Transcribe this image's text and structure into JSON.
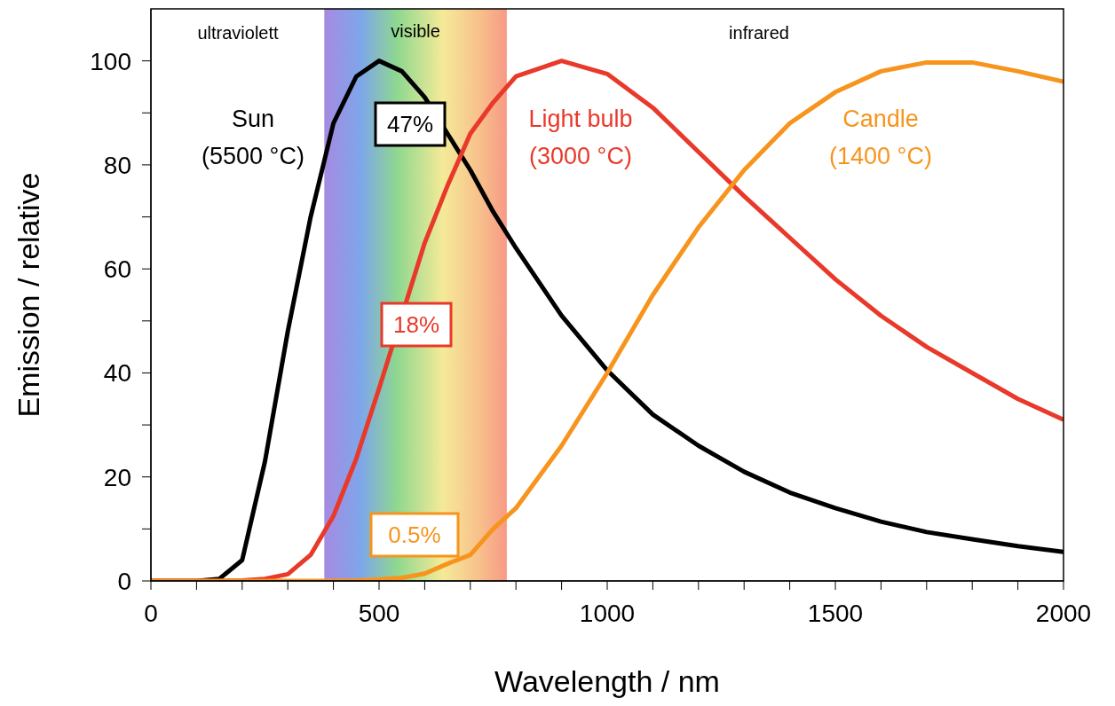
{
  "chart_data": {
    "type": "line",
    "xlabel": "Wavelength / nm",
    "ylabel": "Emission / relative",
    "x": [
      0,
      100,
      150,
      200,
      250,
      300,
      350,
      400,
      450,
      500,
      550,
      600,
      650,
      700,
      750,
      800,
      900,
      1000,
      1100,
      1200,
      1300,
      1400,
      1500,
      1600,
      1700,
      1800,
      1900,
      2000
    ],
    "series": [
      {
        "name": "Sun (5500 °C)",
        "color": "#000000",
        "values": [
          0,
          0,
          0.4,
          4,
          23,
          48,
          70,
          88,
          97,
          100,
          98,
          93,
          86,
          79,
          71,
          64,
          51,
          40.5,
          32,
          26,
          21,
          17,
          14,
          11.4,
          9.4,
          8,
          6.7,
          5.6
        ]
      },
      {
        "name": "Light bulb (3000 °C)",
        "color": "#e8392a",
        "x": [
          0,
          100,
          150,
          200,
          250,
          300,
          350,
          400,
          450,
          500,
          600,
          650,
          700,
          750,
          800,
          900,
          1000,
          1100,
          1200,
          1300,
          1400,
          1500,
          1600,
          1700,
          1800,
          1900,
          2000
        ],
        "values": [
          0,
          0,
          0,
          0.1,
          0.4,
          1.3,
          5,
          12.5,
          23.5,
          37,
          65,
          76,
          86,
          92,
          97,
          100,
          97.5,
          91,
          82.5,
          74,
          66,
          58,
          51,
          45,
          40,
          35,
          31
        ]
      },
      {
        "name": "Candle (1400 °C)",
        "color": "#f7941d",
        "values": [
          0,
          0,
          0,
          0,
          0,
          0,
          0,
          0,
          0.1,
          0.3,
          0.6,
          1.4,
          3.3,
          5,
          10,
          14,
          26,
          40,
          55,
          68,
          79,
          88,
          94,
          98,
          99.7,
          99.7,
          98,
          96
        ]
      }
    ],
    "xlim": [
      0,
      2000
    ],
    "xticks": [
      0,
      {
        "value": 100,
        "label": null
      },
      {
        "value": 200,
        "label": null
      },
      {
        "value": 300,
        "label": null
      },
      {
        "value": 400,
        "label": null
      },
      500,
      {
        "value": 600,
        "label": null
      },
      {
        "value": 700,
        "label": null
      },
      {
        "value": 800,
        "label": null
      },
      {
        "value": 900,
        "label": null
      },
      1000,
      {
        "value": 1100,
        "label": null
      },
      {
        "value": 1200,
        "label": null
      },
      {
        "value": 1300,
        "label": null
      },
      {
        "value": 1400,
        "label": null
      },
      1500,
      {
        "value": 1600,
        "label": null
      },
      {
        "value": 1700,
        "label": null
      },
      {
        "value": 1800,
        "label": null
      },
      {
        "value": 1900,
        "label": null
      },
      2000
    ],
    "ylim": [
      0,
      110
    ],
    "yticks": [
      0,
      {
        "value": 10,
        "label": null
      },
      20,
      {
        "value": 30,
        "label": null
      },
      40,
      {
        "value": 50,
        "label": null
      },
      60,
      {
        "value": 70,
        "label": null
      },
      80,
      {
        "value": 90,
        "label": null
      },
      100
    ],
    "bands": [
      {
        "axis": "x",
        "from": 380,
        "to": 780,
        "label": "visible"
      }
    ],
    "annotations": [
      "ultraviolett",
      "infrared",
      "47%",
      "18%",
      "0.5%"
    ],
    "grid": false
  }
}
